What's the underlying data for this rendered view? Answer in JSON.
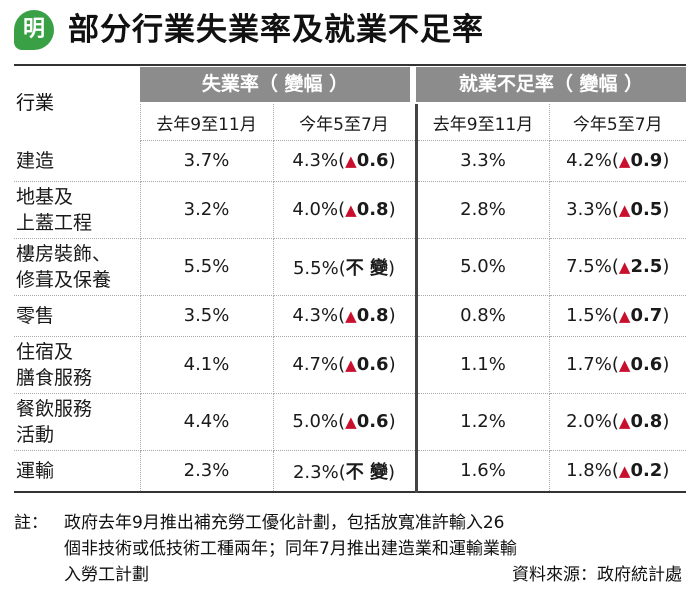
{
  "logo": {
    "text": "明",
    "color": "#3aa046"
  },
  "title": "部分行業失業率及就業不足率",
  "table": {
    "row_header": "行業",
    "groups": [
      "失業率（ 變幅 ）",
      "就業不足率（ 變幅 ）"
    ],
    "subheaders": [
      "去年9至11月",
      "今年5至7月",
      "去年9至11月",
      "今年5至7月"
    ],
    "rows": [
      {
        "industry": [
          "建造"
        ],
        "u_prev": "3.7%",
        "u_cur": "4.3%",
        "u_chg": "0.6",
        "u_up": true,
        "ud_prev": "3.3%",
        "ud_cur": "4.2%",
        "ud_chg": "0.9",
        "ud_up": true
      },
      {
        "industry": [
          "地基及",
          "上蓋工程"
        ],
        "u_prev": "3.2%",
        "u_cur": "4.0%",
        "u_chg": "0.8",
        "u_up": true,
        "ud_prev": "2.8%",
        "ud_cur": "3.3%",
        "ud_chg": "0.5",
        "ud_up": true
      },
      {
        "industry": [
          "樓房裝飾、",
          "修葺及保養"
        ],
        "u_prev": "5.5%",
        "u_cur": "5.5%",
        "u_chg": "不 變",
        "u_up": false,
        "ud_prev": "5.0%",
        "ud_cur": "7.5%",
        "ud_chg": "2.5",
        "ud_up": true
      },
      {
        "industry": [
          "零售"
        ],
        "u_prev": "3.5%",
        "u_cur": "4.3%",
        "u_chg": "0.8",
        "u_up": true,
        "ud_prev": "0.8%",
        "ud_cur": "1.5%",
        "ud_chg": "0.7",
        "ud_up": true
      },
      {
        "industry": [
          "住宿及",
          "膳食服務"
        ],
        "u_prev": "4.1%",
        "u_cur": "4.7%",
        "u_chg": "0.6",
        "u_up": true,
        "ud_prev": "1.1%",
        "ud_cur": "1.7%",
        "ud_chg": "0.6",
        "ud_up": true
      },
      {
        "industry": [
          "餐飲服務",
          "活動"
        ],
        "u_prev": "4.4%",
        "u_cur": "5.0%",
        "u_chg": "0.6",
        "u_up": true,
        "ud_prev": "1.2%",
        "ud_cur": "2.0%",
        "ud_chg": "0.8",
        "ud_up": true
      },
      {
        "industry": [
          "運輸"
        ],
        "u_prev": "2.3%",
        "u_cur": "2.3%",
        "u_chg": "不 變",
        "u_up": false,
        "ud_prev": "1.6%",
        "ud_cur": "1.8%",
        "ud_chg": "0.2",
        "ud_up": true
      }
    ]
  },
  "note": {
    "label": "註：",
    "lines": [
      "政府去年9月推出補充勞工優化計劃，包括放寬准許輸入26",
      "個非技術或低技術工種兩年；同年7月推出建造業和運輸業輸",
      "入勞工計劃"
    ],
    "source": "資料來源：政府統計處"
  },
  "colors": {
    "header_bg": "#8c8c8c",
    "arrow": "#c8102e",
    "brand": "#3aa046"
  },
  "icons": {
    "increase": "▲"
  }
}
